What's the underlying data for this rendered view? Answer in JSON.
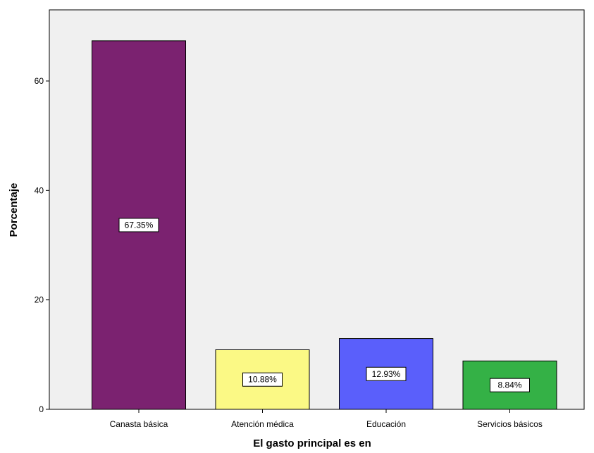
{
  "chart_data": {
    "type": "bar",
    "title": "",
    "xlabel": "El gasto principal es en",
    "ylabel": "Porcentaje",
    "categories": [
      "Canasta básica",
      "Atención médica",
      "Educación",
      "Servicios básicos"
    ],
    "values": [
      67.35,
      10.88,
      12.93,
      8.84
    ],
    "data_labels": [
      "67.35%",
      "10.88%",
      "12.93%",
      "8.84%"
    ],
    "colors": [
      "#7b2270",
      "#fbf985",
      "#5a5ffb",
      "#34b146"
    ],
    "ylim": [
      0,
      73
    ],
    "yticks": [
      0,
      20,
      40,
      60
    ],
    "grid": false,
    "legend": "none",
    "plot_background": "#f0f0f0"
  }
}
